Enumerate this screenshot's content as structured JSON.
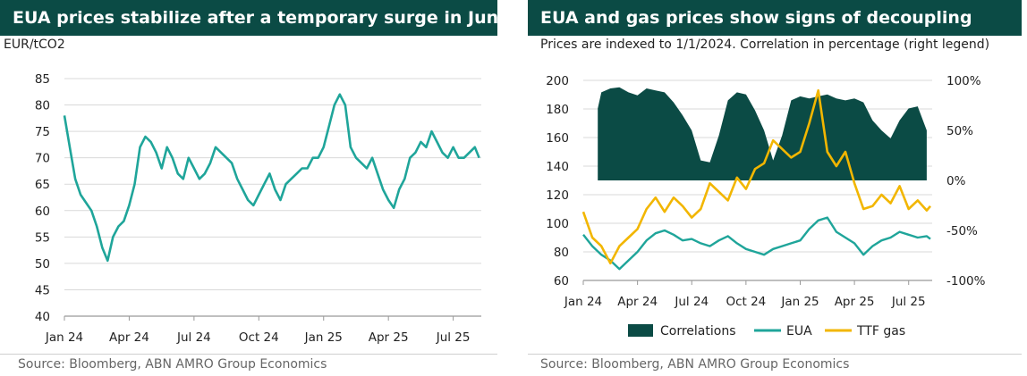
{
  "left_panel": {
    "title": "EUA prices stabilize after a temporary surge in June",
    "unit_label": "EUR/tCO2",
    "source": "Source: Bloomberg, ABN AMRO Group Economics"
  },
  "right_panel": {
    "title": "EUA and gas prices show signs of decoupling",
    "subtitle": "Prices are indexed to 1/1/2024. Correlation in percentage (right legend)",
    "source": "Source: Bloomberg, ABN AMRO Group Economics"
  },
  "colors": {
    "title_bg": "#0b4b45",
    "eua": "#1fa59a",
    "gas": "#f2b600",
    "correlation": "#0b4b45",
    "grid": "#d9d9d9"
  },
  "chart_data": [
    {
      "type": "line",
      "xlabel": "",
      "ylabel": "EUR/tCO2",
      "x_ticks": [
        "Jan 24",
        "Apr 24",
        "Jul 24",
        "Oct 24",
        "Jan 25",
        "Apr 25",
        "Jul 25"
      ],
      "y_ticks": [
        40,
        45,
        50,
        55,
        60,
        65,
        70,
        75,
        80,
        85
      ],
      "ylim": [
        40,
        85
      ],
      "xlim": [
        0,
        19.3
      ],
      "grid": true,
      "series": [
        {
          "x": [
            0,
            0.25,
            0.5,
            0.75,
            1.0,
            1.25,
            1.5,
            1.75,
            2.0,
            2.25,
            2.5,
            2.75,
            3.0,
            3.25,
            3.5,
            3.75,
            4.0,
            4.25,
            4.5,
            4.75,
            5.0,
            5.25,
            5.5,
            5.75,
            6.0,
            6.25,
            6.5,
            6.75,
            7.0,
            7.25,
            7.5,
            7.75,
            8.0,
            8.25,
            8.5,
            8.75,
            9.0,
            9.25,
            9.5,
            9.75,
            10.0,
            10.25,
            10.5,
            10.75,
            11.0,
            11.25,
            11.5,
            11.75,
            12.0,
            12.25,
            12.5,
            12.75,
            13.0,
            13.25,
            13.5,
            13.75,
            14.0,
            14.25,
            14.5,
            14.75,
            15.0,
            15.25,
            15.5,
            15.75,
            16.0,
            16.25,
            16.5,
            16.75,
            17.0,
            17.25,
            17.5,
            17.75,
            18.0,
            18.25,
            18.5,
            18.75,
            19.0,
            19.2
          ],
          "values": [
            78,
            72,
            66,
            63,
            61.5,
            60,
            57,
            53,
            50.5,
            55,
            57,
            58,
            61,
            65,
            72,
            74,
            73,
            71,
            68,
            72,
            70,
            67,
            66,
            70,
            68,
            66,
            67,
            69,
            72,
            71,
            70,
            69,
            66,
            64,
            62,
            61,
            63,
            65,
            67,
            64,
            62,
            65,
            66,
            67,
            68,
            68,
            70,
            70,
            72,
            76,
            80,
            82,
            80,
            72,
            70,
            69,
            68,
            70,
            67,
            64,
            62,
            60.5,
            64,
            66,
            70,
            71,
            73,
            72,
            75,
            73,
            71,
            70,
            72,
            70,
            70,
            71,
            72,
            70
          ]
        }
      ]
    },
    {
      "type": "line",
      "xlabel": "",
      "ylabel": "",
      "x_ticks": [
        "Jan 24",
        "Apr 24",
        "Jul 24",
        "Oct 24",
        "Jan 25",
        "Apr 25",
        "Jul 25"
      ],
      "y_ticks": [
        60,
        80,
        100,
        120,
        140,
        160,
        180,
        200
      ],
      "y_right_ticks": [
        "100%",
        "50%",
        "0%",
        "-50%",
        "-100%"
      ],
      "ylim": [
        60,
        200
      ],
      "y_right_lim": [
        -100,
        100
      ],
      "xlim": [
        0,
        19.3
      ],
      "grid": true,
      "legend": "bottom",
      "series": [
        {
          "name": "Correlations",
          "kind": "area",
          "axis": "right",
          "x": [
            0.8,
            1.0,
            1.5,
            2.0,
            2.5,
            3.0,
            3.5,
            4.0,
            4.5,
            5.0,
            5.5,
            6.0,
            6.5,
            7.0,
            7.5,
            8.0,
            8.5,
            9.0,
            9.5,
            10.0,
            10.5,
            11.0,
            11.5,
            12.0,
            12.5,
            13.0,
            13.5,
            14.0,
            14.5,
            15.0,
            15.5,
            16.0,
            16.5,
            17.0,
            17.5,
            18.0,
            18.5,
            19.0
          ],
          "values": [
            72,
            88,
            92,
            93,
            88,
            85,
            92,
            90,
            88,
            78,
            65,
            50,
            20,
            18,
            45,
            80,
            88,
            86,
            70,
            50,
            20,
            45,
            80,
            84,
            82,
            84,
            86,
            82,
            80,
            82,
            78,
            60,
            50,
            42,
            60,
            72,
            74,
            50
          ]
        },
        {
          "name": "EUA",
          "kind": "line",
          "axis": "left",
          "x": [
            0,
            0.5,
            1.0,
            1.5,
            2.0,
            2.5,
            3.0,
            3.5,
            4.0,
            4.5,
            5.0,
            5.5,
            6.0,
            6.5,
            7.0,
            7.5,
            8.0,
            8.5,
            9.0,
            9.5,
            10.0,
            10.5,
            11.0,
            11.5,
            12.0,
            12.5,
            13.0,
            13.5,
            14.0,
            14.5,
            15.0,
            15.5,
            16.0,
            16.5,
            17.0,
            17.5,
            18.0,
            18.5,
            19.0,
            19.2
          ],
          "values": [
            92,
            84,
            78,
            74,
            68,
            74,
            80,
            88,
            93,
            95,
            92,
            88,
            89,
            86,
            84,
            88,
            91,
            86,
            82,
            80,
            78,
            82,
            84,
            86,
            88,
            96,
            102,
            104,
            94,
            90,
            86,
            78,
            84,
            88,
            90,
            94,
            92,
            90,
            91,
            89
          ]
        },
        {
          "name": "TTF gas",
          "kind": "line",
          "axis": "left",
          "x": [
            0,
            0.5,
            1.0,
            1.5,
            2.0,
            2.5,
            3.0,
            3.5,
            4.0,
            4.5,
            5.0,
            5.5,
            6.0,
            6.5,
            7.0,
            7.5,
            8.0,
            8.5,
            9.0,
            9.5,
            10.0,
            10.5,
            11.0,
            11.5,
            12.0,
            12.5,
            13.0,
            13.5,
            14.0,
            14.5,
            15.0,
            15.5,
            16.0,
            16.5,
            17.0,
            17.5,
            18.0,
            18.5,
            19.0,
            19.2
          ],
          "values": [
            108,
            90,
            84,
            72,
            84,
            90,
            96,
            110,
            118,
            108,
            118,
            112,
            104,
            110,
            128,
            122,
            116,
            132,
            124,
            138,
            142,
            158,
            152,
            146,
            150,
            170,
            193,
            150,
            140,
            150,
            128,
            110,
            112,
            120,
            114,
            126,
            110,
            116,
            109,
            112
          ]
        }
      ]
    }
  ]
}
